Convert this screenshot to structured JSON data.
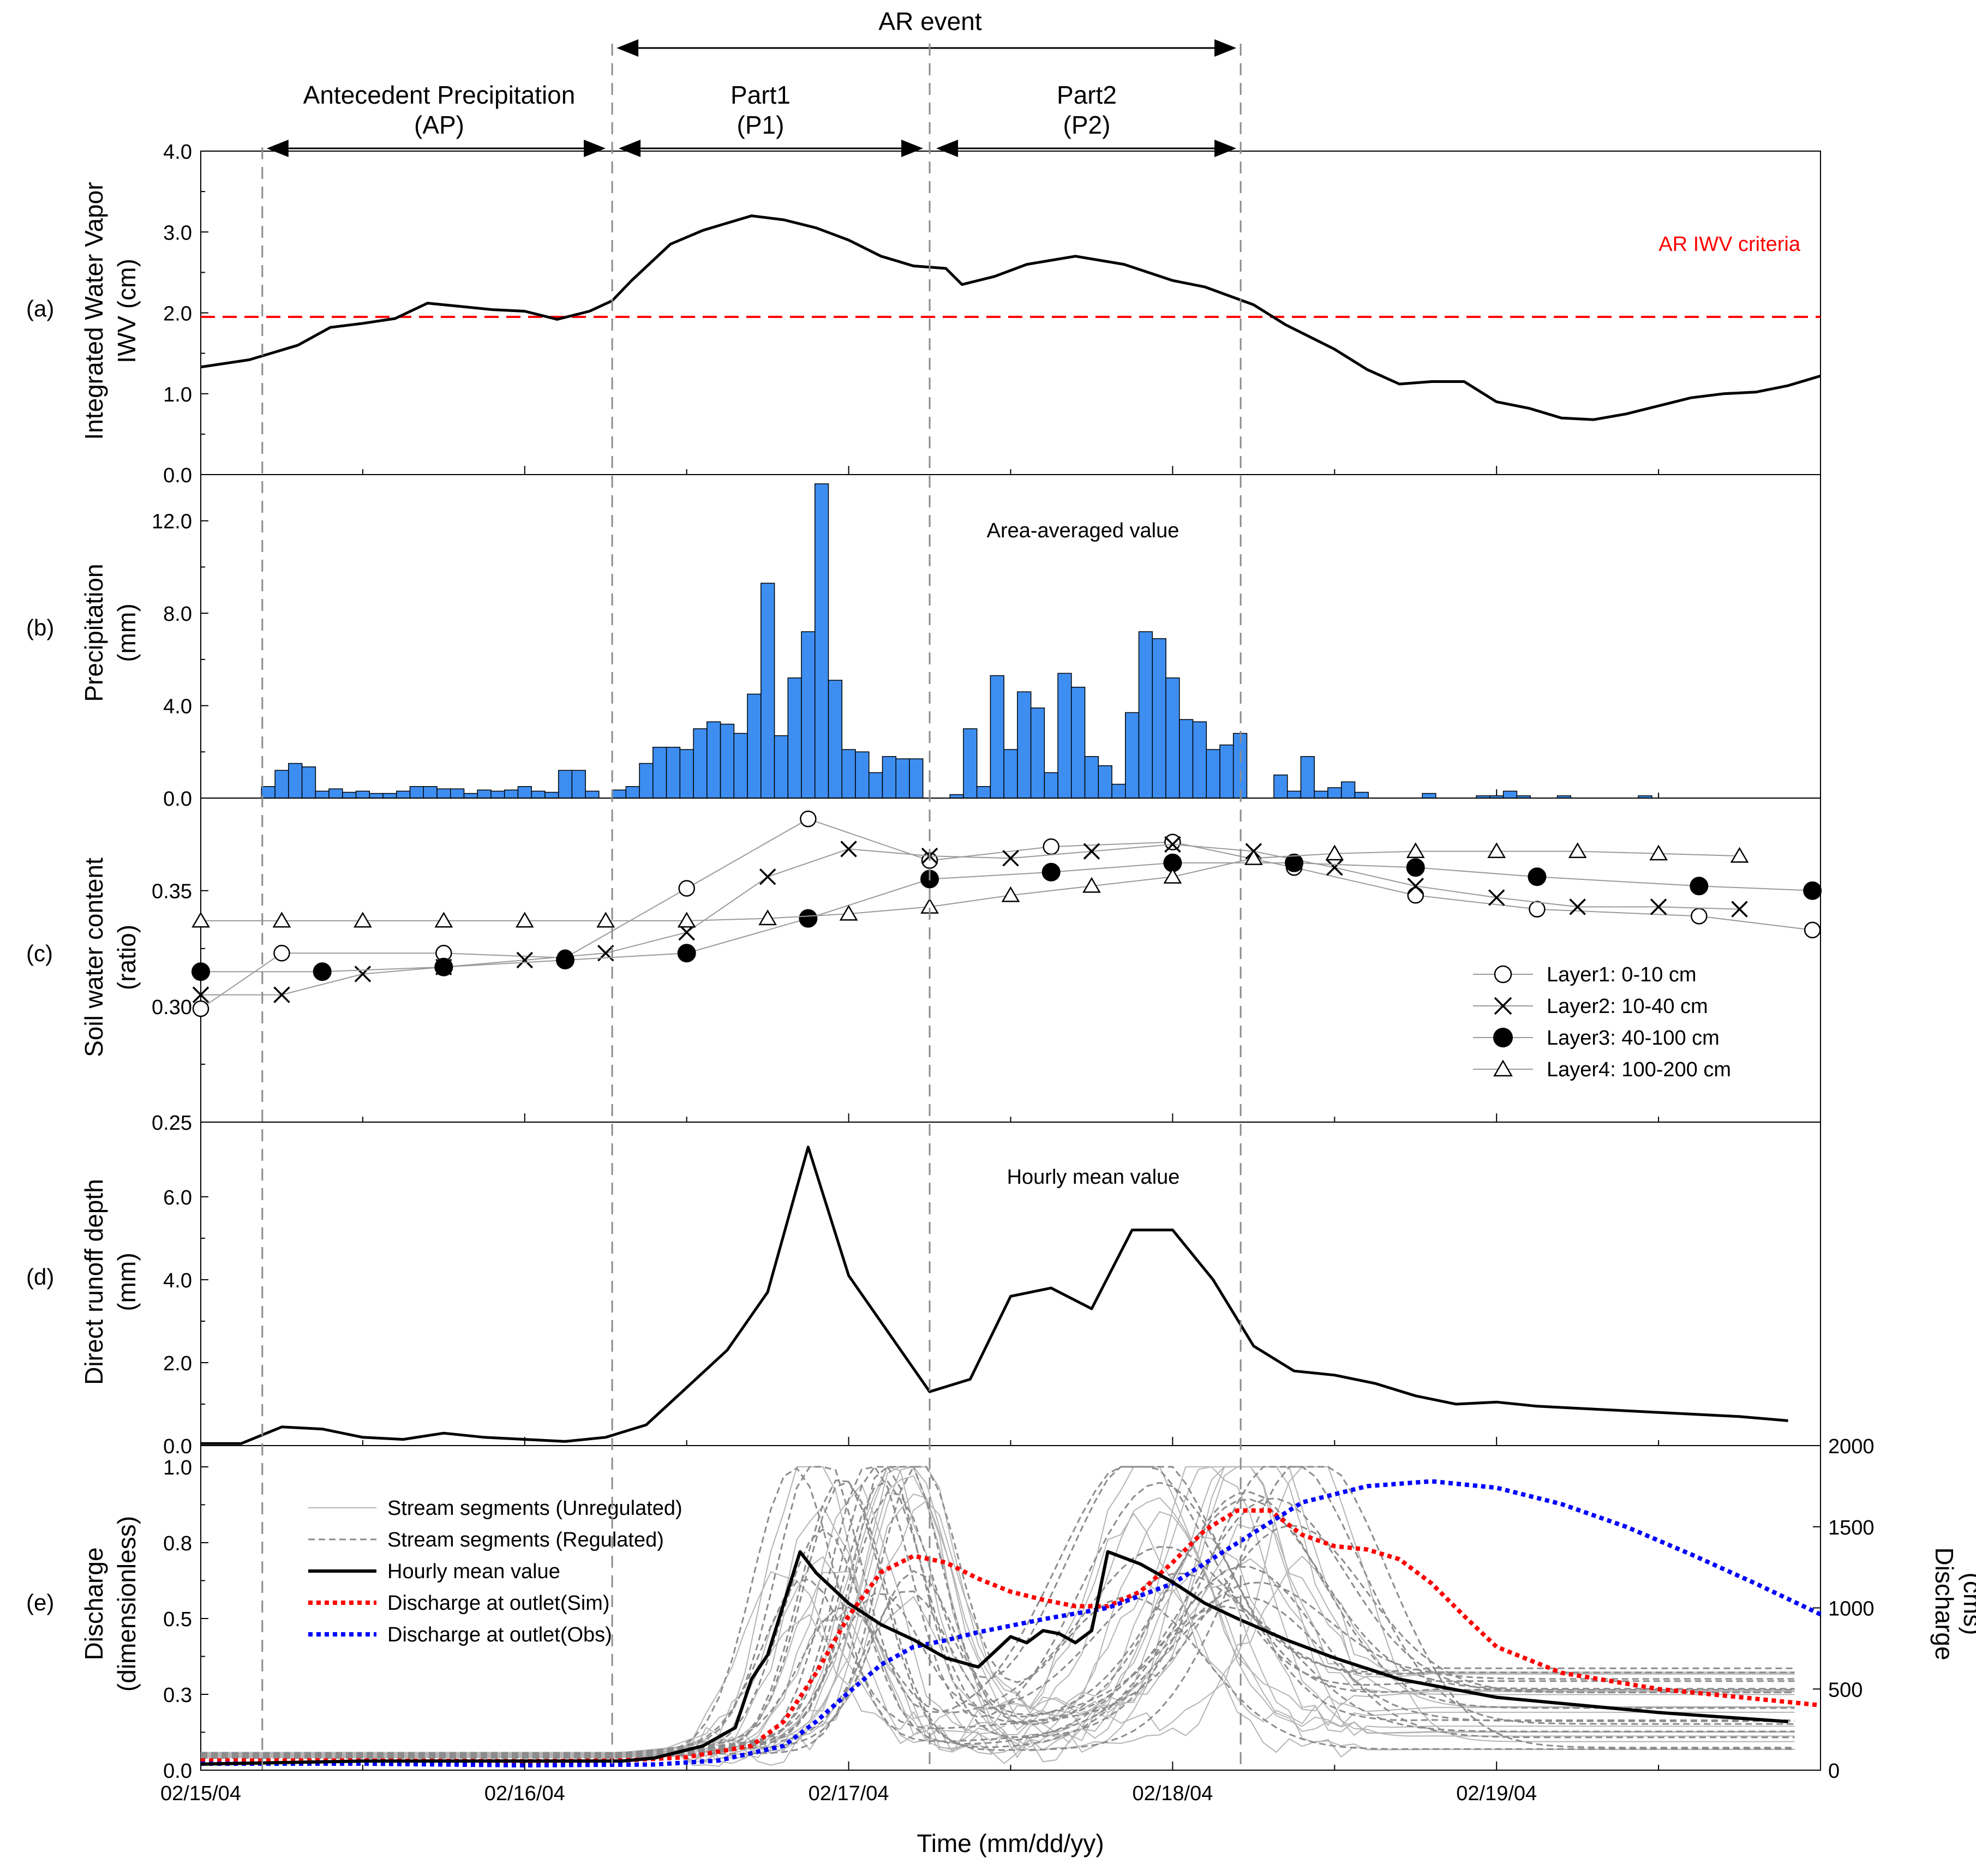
{
  "event_labels": {
    "ar_event": "AR event",
    "ap_line1": "Antecedent Precipitation",
    "ap_line2": "(AP)",
    "p1_line1": "Part1",
    "p1_line2": "(P1)",
    "p2_line1": "Part2",
    "p2_line2": "(P2)"
  },
  "event_boundaries_days": [
    0.19,
    1.27,
    2.25,
    3.21
  ],
  "time_axis": {
    "label": "Time (mm/dd/yy)",
    "ticks": [
      0,
      1,
      2,
      3,
      4
    ],
    "tick_labels": [
      "02/15/04",
      "02/16/04",
      "02/17/04",
      "02/18/04",
      "02/19/04"
    ],
    "range_days": [
      0,
      5
    ]
  },
  "colors": {
    "precip_bar": "#3d8ef0",
    "ar_criteria": "#ff0000",
    "sim_discharge": "#ff0000",
    "obs_discharge": "#0000ff",
    "segments_unregulated": "#b4b4b4",
    "segments_regulated": "#8c8c8c"
  },
  "panels": {
    "a": {
      "panel_label": "(a)",
      "ylabel1": "Integrated Water Vapor",
      "ylabel2": "IWV (cm)"
    },
    "b": {
      "panel_label": "(b)",
      "ylabel1": "Precipitation",
      "ylabel2": "(mm)",
      "annotation": "Area-averaged value"
    },
    "c": {
      "panel_label": "(c)",
      "ylabel1": "Soil water content",
      "ylabel2": "(ratio)"
    },
    "d": {
      "panel_label": "(d)",
      "ylabel1": "Direct runoff depth",
      "ylabel2": "(mm)",
      "annotation": "Hourly mean value"
    },
    "e": {
      "panel_label": "(e)",
      "ylabel1": "Discharge",
      "ylabel2": "(dimensionless)",
      "ylabel_right1": "Discharge",
      "ylabel_right2": "(cms)"
    }
  },
  "chart_data": [
    {
      "panel": "a",
      "type": "line",
      "ylim": [
        0,
        4
      ],
      "yticks": [
        0,
        1,
        2,
        3,
        4
      ],
      "ytick_labels": [
        "0.0",
        "1.0",
        "2.0",
        "3.0",
        "4.0"
      ],
      "threshold": {
        "value": 1.95,
        "label": "AR IWV criteria"
      },
      "series": [
        {
          "x": [
            0,
            0.15,
            0.3,
            0.4,
            0.5,
            0.6,
            0.7,
            0.8,
            0.9,
            1.0,
            1.1,
            1.2,
            1.27,
            1.33,
            1.45,
            1.55,
            1.6,
            1.7,
            1.8,
            1.9,
            2.0,
            2.1,
            2.2,
            2.3,
            2.35,
            2.45,
            2.55,
            2.7,
            2.85,
            3.0,
            3.1,
            3.25,
            3.35,
            3.5,
            3.6,
            3.7,
            3.8,
            3.9,
            4.0,
            4.1,
            4.2,
            4.3,
            4.4,
            4.5,
            4.6,
            4.7,
            4.8,
            4.9,
            5.0
          ],
          "y": [
            1.33,
            1.42,
            1.6,
            1.82,
            1.87,
            1.93,
            2.12,
            2.08,
            2.04,
            2.02,
            1.92,
            2.02,
            2.15,
            2.4,
            2.85,
            3.02,
            3.08,
            3.2,
            3.15,
            3.05,
            2.9,
            2.7,
            2.58,
            2.55,
            2.35,
            2.45,
            2.6,
            2.7,
            2.6,
            2.4,
            2.32,
            2.1,
            1.85,
            1.55,
            1.3,
            1.12,
            1.15,
            1.15,
            0.9,
            0.82,
            0.7,
            0.68,
            0.75,
            0.85,
            0.95,
            1.0,
            1.02,
            1.1,
            1.22
          ]
        }
      ]
    },
    {
      "panel": "b",
      "type": "bar",
      "ylim": [
        0,
        14
      ],
      "yticks": [
        0,
        4,
        8,
        12
      ],
      "ytick_labels": [
        "0.0",
        "4.0",
        "8.0",
        "12.0"
      ],
      "bar_width_days": 0.0417,
      "bars": [
        [
          0.1875,
          0.5
        ],
        [
          0.2292,
          1.2
        ],
        [
          0.2708,
          1.5
        ],
        [
          0.3125,
          1.35
        ],
        [
          0.3542,
          0.3
        ],
        [
          0.3958,
          0.4
        ],
        [
          0.4375,
          0.25
        ],
        [
          0.4792,
          0.3
        ],
        [
          0.5208,
          0.2
        ],
        [
          0.5625,
          0.2
        ],
        [
          0.6042,
          0.3
        ],
        [
          0.6458,
          0.5
        ],
        [
          0.6875,
          0.5
        ],
        [
          0.7292,
          0.4
        ],
        [
          0.7708,
          0.4
        ],
        [
          0.8125,
          0.2
        ],
        [
          0.8542,
          0.35
        ],
        [
          0.8958,
          0.3
        ],
        [
          0.9375,
          0.35
        ],
        [
          0.9792,
          0.5
        ],
        [
          1.0208,
          0.3
        ],
        [
          1.0625,
          0.25
        ],
        [
          1.1042,
          1.2
        ],
        [
          1.1458,
          1.2
        ],
        [
          1.1875,
          0.3
        ],
        [
          1.2708,
          0.35
        ],
        [
          1.3125,
          0.5
        ],
        [
          1.3542,
          1.5
        ],
        [
          1.3958,
          2.2
        ],
        [
          1.4375,
          2.2
        ],
        [
          1.4792,
          2.1
        ],
        [
          1.5208,
          3.0
        ],
        [
          1.5625,
          3.3
        ],
        [
          1.6042,
          3.2
        ],
        [
          1.6458,
          2.8
        ],
        [
          1.6875,
          4.5
        ],
        [
          1.7292,
          9.3
        ],
        [
          1.7708,
          2.7
        ],
        [
          1.8125,
          5.2
        ],
        [
          1.8542,
          7.2
        ],
        [
          1.8958,
          13.6
        ],
        [
          1.9375,
          5.1
        ],
        [
          1.9792,
          2.1
        ],
        [
          2.0208,
          2.0
        ],
        [
          2.0625,
          1.1
        ],
        [
          2.1042,
          1.8
        ],
        [
          2.1458,
          1.7
        ],
        [
          2.1875,
          1.7
        ],
        [
          2.3125,
          0.15
        ],
        [
          2.3542,
          3.0
        ],
        [
          2.3958,
          0.5
        ],
        [
          2.4375,
          5.3
        ],
        [
          2.4792,
          2.1
        ],
        [
          2.5208,
          4.6
        ],
        [
          2.5625,
          3.9
        ],
        [
          2.6042,
          1.1
        ],
        [
          2.6458,
          5.4
        ],
        [
          2.6875,
          4.8
        ],
        [
          2.7292,
          1.8
        ],
        [
          2.7708,
          1.4
        ],
        [
          2.8125,
          0.6
        ],
        [
          2.8542,
          3.7
        ],
        [
          2.8958,
          7.2
        ],
        [
          2.9375,
          6.9
        ],
        [
          2.9792,
          5.2
        ],
        [
          3.0208,
          3.4
        ],
        [
          3.0625,
          3.3
        ],
        [
          3.1042,
          2.1
        ],
        [
          3.1458,
          2.3
        ],
        [
          3.1875,
          2.8
        ],
        [
          3.3125,
          1.0
        ],
        [
          3.3542,
          0.3
        ],
        [
          3.3958,
          1.8
        ],
        [
          3.4375,
          0.3
        ],
        [
          3.4792,
          0.45
        ],
        [
          3.5208,
          0.7
        ],
        [
          3.5625,
          0.25
        ],
        [
          3.7708,
          0.2
        ],
        [
          3.9375,
          0.1
        ],
        [
          3.9792,
          0.1
        ],
        [
          4.0208,
          0.3
        ],
        [
          4.0625,
          0.1
        ],
        [
          4.1875,
          0.1
        ],
        [
          4.4375,
          0.1
        ]
      ]
    },
    {
      "panel": "c",
      "type": "scatter",
      "ylim": [
        0.25,
        0.39
      ],
      "yticks": [
        0.25,
        0.3,
        0.35
      ],
      "ytick_labels": [
        "0.25",
        "0.30",
        "0.35"
      ],
      "legend_position": "bottom-right",
      "series": [
        {
          "name": "Layer1: 0-10 cm",
          "marker": "open-circle",
          "x": [
            0,
            0.25,
            0.75,
            1.125,
            1.5,
            1.875,
            2.25,
            2.625,
            3.0,
            3.375,
            3.75,
            4.125,
            4.625,
            4.975
          ],
          "y": [
            0.299,
            0.323,
            0.323,
            0.321,
            0.351,
            0.381,
            0.363,
            0.369,
            0.371,
            0.36,
            0.348,
            0.342,
            0.339,
            0.333
          ]
        },
        {
          "name": "Layer2: 10-40 cm",
          "marker": "x",
          "x": [
            0,
            0.25,
            0.5,
            0.75,
            1.0,
            1.25,
            1.5,
            1.75,
            2.0,
            2.25,
            2.5,
            2.75,
            3.0,
            3.25,
            3.5,
            3.75,
            4.0,
            4.25,
            4.5,
            4.75
          ],
          "y": [
            0.305,
            0.305,
            0.314,
            0.317,
            0.32,
            0.323,
            0.332,
            0.356,
            0.368,
            0.365,
            0.364,
            0.367,
            0.37,
            0.367,
            0.36,
            0.352,
            0.347,
            0.343,
            0.343,
            0.342
          ]
        },
        {
          "name": "Layer3: 40-100 cm",
          "marker": "filled-circle",
          "x": [
            0,
            0.375,
            0.75,
            1.125,
            1.5,
            1.875,
            2.25,
            2.625,
            3.0,
            3.375,
            3.75,
            4.125,
            4.625,
            4.975
          ],
          "y": [
            0.315,
            0.315,
            0.317,
            0.32,
            0.323,
            0.338,
            0.355,
            0.358,
            0.362,
            0.362,
            0.36,
            0.356,
            0.352,
            0.35
          ]
        },
        {
          "name": "Layer4: 100-200 cm",
          "marker": "open-triangle",
          "x": [
            0,
            0.25,
            0.5,
            0.75,
            1.0,
            1.25,
            1.5,
            1.75,
            2.0,
            2.25,
            2.5,
            2.75,
            3.0,
            3.25,
            3.5,
            3.75,
            4.0,
            4.25,
            4.5,
            4.75
          ],
          "y": [
            0.337,
            0.337,
            0.337,
            0.337,
            0.337,
            0.337,
            0.337,
            0.338,
            0.34,
            0.343,
            0.348,
            0.352,
            0.356,
            0.364,
            0.366,
            0.367,
            0.367,
            0.367,
            0.366,
            0.365
          ]
        }
      ]
    },
    {
      "panel": "d",
      "type": "line",
      "ylim": [
        0,
        7.8
      ],
      "yticks": [
        0,
        2,
        4,
        6
      ],
      "ytick_labels": [
        "0.0",
        "2.0",
        "4.0",
        "6.0"
      ],
      "series": [
        {
          "x": [
            0,
            0.125,
            0.25,
            0.375,
            0.5,
            0.625,
            0.75,
            0.875,
            1.0,
            1.125,
            1.25,
            1.375,
            1.5,
            1.625,
            1.75,
            1.875,
            2.0,
            2.125,
            2.25,
            2.375,
            2.5,
            2.625,
            2.75,
            2.875,
            3.0,
            3.125,
            3.25,
            3.375,
            3.5,
            3.625,
            3.75,
            3.875,
            4.0,
            4.125,
            4.25,
            4.375,
            4.5,
            4.625,
            4.75,
            4.9
          ],
          "y": [
            0.05,
            0.05,
            0.45,
            0.4,
            0.2,
            0.15,
            0.3,
            0.2,
            0.15,
            0.1,
            0.2,
            0.5,
            1.4,
            2.3,
            3.7,
            7.2,
            4.1,
            2.7,
            1.3,
            1.6,
            3.6,
            3.8,
            3.3,
            5.2,
            5.2,
            4.0,
            2.4,
            1.8,
            1.7,
            1.5,
            1.2,
            1.0,
            1.05,
            0.95,
            0.9,
            0.85,
            0.8,
            0.75,
            0.7,
            0.6
          ]
        }
      ]
    },
    {
      "panel": "e",
      "type": "line",
      "ylim": [
        0,
        1.07
      ],
      "yticks": [
        0,
        0.25,
        0.5,
        0.75,
        1.0
      ],
      "ytick_labels": [
        "0.0",
        "0.3",
        "0.5",
        "0.8",
        "1.0"
      ],
      "y2lim": [
        0,
        2000
      ],
      "y2ticks": [
        0,
        500,
        1000,
        1500,
        2000
      ],
      "y2tick_labels": [
        "0",
        "500",
        "1000",
        "1500",
        "2000"
      ],
      "legend_position": "top-left",
      "series": [
        {
          "name": "Stream segments (Unregulated)",
          "axis": "left",
          "style": "solid-thin-gray"
        },
        {
          "name": "Stream segments (Regulated)",
          "axis": "left",
          "style": "dashed-gray"
        },
        {
          "name": "Hourly mean value",
          "axis": "left",
          "style": "solid-black",
          "x": [
            0,
            0.5,
            1.0,
            1.3,
            1.4,
            1.55,
            1.65,
            1.7,
            1.75,
            1.8,
            1.85,
            1.9,
            2.0,
            2.1,
            2.2,
            2.3,
            2.4,
            2.5,
            2.55,
            2.6,
            2.65,
            2.7,
            2.75,
            2.8,
            2.9,
            3.0,
            3.1,
            3.2,
            3.35,
            3.5,
            3.7,
            4.0,
            4.5,
            4.9
          ],
          "y": [
            0.02,
            0.03,
            0.03,
            0.03,
            0.04,
            0.08,
            0.14,
            0.3,
            0.38,
            0.55,
            0.72,
            0.65,
            0.55,
            0.48,
            0.43,
            0.37,
            0.34,
            0.44,
            0.42,
            0.46,
            0.45,
            0.42,
            0.46,
            0.72,
            0.68,
            0.62,
            0.55,
            0.5,
            0.43,
            0.37,
            0.3,
            0.24,
            0.19,
            0.16
          ]
        },
        {
          "name": "Discharge at outlet(Sim)",
          "axis": "right",
          "style": "dotted-red",
          "x": [
            0,
            0.5,
            1.0,
            1.3,
            1.5,
            1.7,
            1.8,
            1.9,
            2.0,
            2.1,
            2.2,
            2.3,
            2.4,
            2.5,
            2.6,
            2.7,
            2.8,
            2.9,
            3.0,
            3.1,
            3.2,
            3.3,
            3.4,
            3.5,
            3.6,
            3.7,
            3.8,
            3.9,
            4.0,
            4.2,
            4.5,
            5.0
          ],
          "y": [
            60,
            60,
            55,
            60,
            80,
            150,
            300,
            600,
            950,
            1220,
            1320,
            1280,
            1180,
            1100,
            1050,
            1010,
            1010,
            1100,
            1280,
            1480,
            1600,
            1600,
            1450,
            1380,
            1360,
            1300,
            1150,
            950,
            760,
            600,
            500,
            400
          ]
        },
        {
          "name": "Discharge at outlet(Obs)",
          "axis": "right",
          "style": "dotted-blue",
          "x": [
            0,
            0.5,
            1.0,
            1.4,
            1.6,
            1.8,
            1.9,
            2.0,
            2.1,
            2.2,
            2.3,
            2.4,
            2.6,
            2.8,
            3.0,
            3.2,
            3.4,
            3.6,
            3.8,
            4.0,
            4.2,
            4.4,
            4.6,
            4.8,
            5.0
          ],
          "y": [
            40,
            40,
            30,
            35,
            60,
            150,
            300,
            480,
            650,
            760,
            800,
            850,
            930,
            1000,
            1150,
            1400,
            1650,
            1750,
            1780,
            1740,
            1640,
            1500,
            1330,
            1150,
            960
          ]
        }
      ]
    }
  ]
}
